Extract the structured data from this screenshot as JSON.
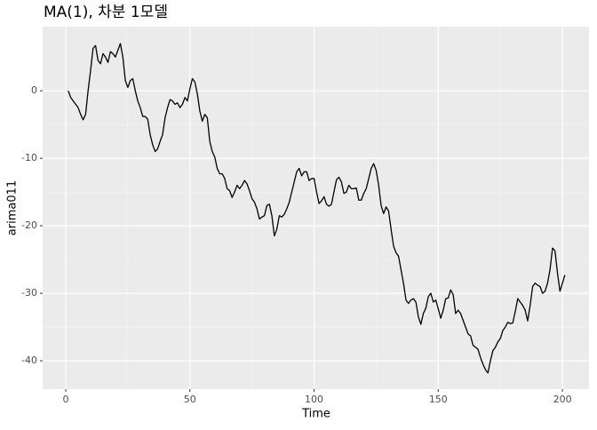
{
  "chart_data": {
    "type": "line",
    "title": "MA(1), 차분 1모델",
    "x_label": "Time",
    "y_label": "arima011",
    "x": [
      1,
      2,
      3,
      4,
      5,
      6,
      7,
      8,
      9,
      10,
      11,
      12,
      13,
      14,
      15,
      16,
      17,
      18,
      19,
      20,
      21,
      22,
      23,
      24,
      25,
      26,
      27,
      28,
      29,
      30,
      31,
      32,
      33,
      34,
      35,
      36,
      37,
      38,
      39,
      40,
      41,
      42,
      43,
      44,
      45,
      46,
      47,
      48,
      49,
      50,
      51,
      52,
      53,
      54,
      55,
      56,
      57,
      58,
      59,
      60,
      61,
      62,
      63,
      64,
      65,
      66,
      67,
      68,
      69,
      70,
      71,
      72,
      73,
      74,
      75,
      76,
      77,
      78,
      79,
      80,
      81,
      82,
      83,
      84,
      85,
      86,
      87,
      88,
      89,
      90,
      91,
      92,
      93,
      94,
      95,
      96,
      97,
      98,
      99,
      100,
      101,
      102,
      103,
      104,
      105,
      106,
      107,
      108,
      109,
      110,
      111,
      112,
      113,
      114,
      115,
      116,
      117,
      118,
      119,
      120,
      121,
      122,
      123,
      124,
      125,
      126,
      127,
      128,
      129,
      130,
      131,
      132,
      133,
      134,
      135,
      136,
      137,
      138,
      139,
      140,
      141,
      142,
      143,
      144,
      145,
      146,
      147,
      148,
      149,
      150,
      151,
      152,
      153,
      154,
      155,
      156,
      157,
      158,
      159,
      160,
      161,
      162,
      163,
      164,
      165,
      166,
      167,
      168,
      169,
      170,
      171,
      172,
      173,
      174,
      175,
      176,
      177,
      178,
      179,
      180,
      181,
      182,
      183,
      184,
      185,
      186,
      187,
      188,
      189,
      190,
      191,
      192,
      193,
      194,
      195,
      196,
      197,
      198,
      199,
      200,
      201
    ],
    "values": [
      0,
      -1,
      -1.5,
      -2,
      -2.5,
      -3.5,
      -4.3,
      -3.5,
      0,
      3,
      6.3,
      6.7,
      4.5,
      4,
      5.5,
      5,
      4.2,
      5.8,
      5.5,
      5,
      6,
      7,
      5,
      1.5,
      0.5,
      1.5,
      1.8,
      0,
      -1.5,
      -2.5,
      -3.8,
      -3.8,
      -4.2,
      -6.5,
      -8,
      -9,
      -8.6,
      -7.5,
      -6.5,
      -4,
      -2.5,
      -1.3,
      -1.5,
      -2,
      -1.8,
      -2.5,
      -2,
      -1,
      -1.5,
      0.3,
      1.8,
      1.3,
      -0.5,
      -3,
      -4.5,
      -3.5,
      -4,
      -7.5,
      -9,
      -9.8,
      -11.5,
      -12.3,
      -12.3,
      -13,
      -14.5,
      -14.8,
      -15.8,
      -15,
      -14,
      -14.5,
      -14,
      -13.3,
      -13.8,
      -14.8,
      -16,
      -16.5,
      -17.5,
      -19,
      -18.7,
      -18.5,
      -17,
      -16.8,
      -18.5,
      -21.5,
      -20.5,
      -18.5,
      -18.7,
      -18.3,
      -17.5,
      -16.5,
      -15,
      -13.5,
      -12,
      -11.5,
      -12.6,
      -12,
      -12,
      -13.3,
      -13,
      -13,
      -15,
      -16.7,
      -16.3,
      -15.7,
      -16.8,
      -17.1,
      -16.8,
      -15,
      -13.2,
      -12.8,
      -13.5,
      -15.2,
      -15,
      -14,
      -14.5,
      -14.5,
      -14.4,
      -16.2,
      -16.2,
      -15.2,
      -14.5,
      -13,
      -11.5,
      -10.8,
      -11.8,
      -14,
      -17,
      -18.2,
      -17.2,
      -17.8,
      -20.5,
      -23,
      -24,
      -24.5,
      -26.5,
      -28.5,
      -31,
      -31.5,
      -31,
      -30.8,
      -31.3,
      -33.5,
      -34.6,
      -33,
      -32.2,
      -30.5,
      -30,
      -31.3,
      -31,
      -32.3,
      -33.7,
      -32.5,
      -30.8,
      -30.7,
      -29.5,
      -30.2,
      -33,
      -32.5,
      -33,
      -34,
      -35,
      -36,
      -36.3,
      -37.7,
      -38,
      -38.3,
      -39.5,
      -40.5,
      -41.3,
      -41.8,
      -40,
      -38.5,
      -38,
      -37.2,
      -36.7,
      -35.5,
      -35,
      -34.3,
      -34.5,
      -34.4,
      -32.7,
      -30.8,
      -31.3,
      -31.8,
      -32.5,
      -34.1,
      -31.8,
      -29,
      -28.5,
      -28.8,
      -29,
      -30,
      -29.7,
      -28.5,
      -26.5,
      -23.3,
      -23.7,
      -27,
      -29.7,
      -28.5,
      -27.3
    ],
    "color": "#000000",
    "xlim": [
      -9.3,
      210.7
    ],
    "xticks": [
      0,
      50,
      100,
      150,
      200
    ],
    "ylim": [
      -44.2,
      9.5
    ],
    "yticks": [
      -40,
      -30,
      -20,
      -10,
      0
    ],
    "grid": true
  }
}
